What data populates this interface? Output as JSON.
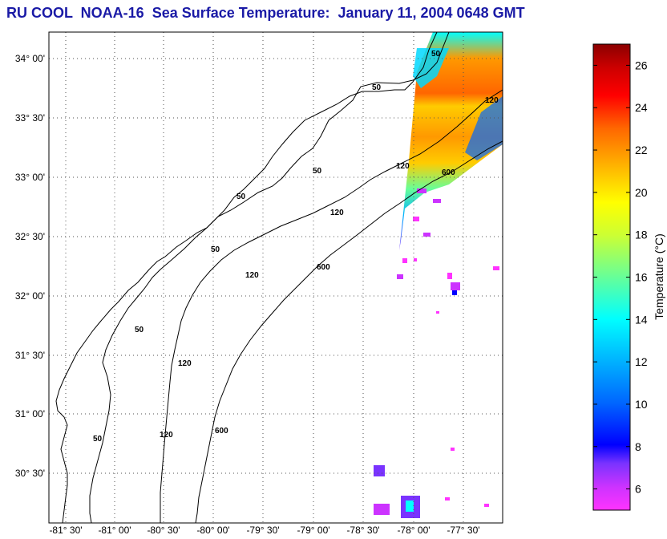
{
  "title": "RU COOL  NOAA-16  Sea Surface Temperature:  January 11, 2004 0648 GMT",
  "map": {
    "lat_ticks": [
      {
        "label": "34° 00'"
      },
      {
        "label": "33° 30'"
      },
      {
        "label": "33° 00'"
      },
      {
        "label": "32° 30'"
      },
      {
        "label": "32° 00'"
      },
      {
        "label": "31° 30'"
      },
      {
        "label": "31° 00'"
      },
      {
        "label": "30° 30'"
      }
    ],
    "lon_ticks": [
      {
        "label": "-81° 30'"
      },
      {
        "label": "-81° 00'"
      },
      {
        "label": "-80° 30'"
      },
      {
        "label": "-80° 00'"
      },
      {
        "label": "-79° 30'"
      },
      {
        "label": "-79° 00'"
      },
      {
        "label": "-78° 30'"
      },
      {
        "label": "-78° 00'"
      },
      {
        "label": "-77° 30'"
      }
    ],
    "isobath_labels": [
      "50",
      "50",
      "50",
      "50",
      "50",
      "50",
      "50",
      "120",
      "120",
      "120",
      "120",
      "120",
      "120",
      "600",
      "600",
      "600"
    ],
    "line_color": "#000000",
    "grid": true
  },
  "colorbar": {
    "label": "Temperature (°C)",
    "ticks": [
      "6",
      "8",
      "10",
      "12",
      "14",
      "16",
      "18",
      "20",
      "22",
      "24",
      "26"
    ],
    "min": 5,
    "max": 27,
    "stops": [
      "#ff33ff",
      "#cc33ff",
      "#7a33ff",
      "#0000ff",
      "#0066ff",
      "#00b2ff",
      "#00ffff",
      "#66ff99",
      "#ccff33",
      "#ffff00",
      "#ffb200",
      "#ff6600",
      "#ff0000",
      "#cc0000",
      "#8b0000"
    ]
  }
}
